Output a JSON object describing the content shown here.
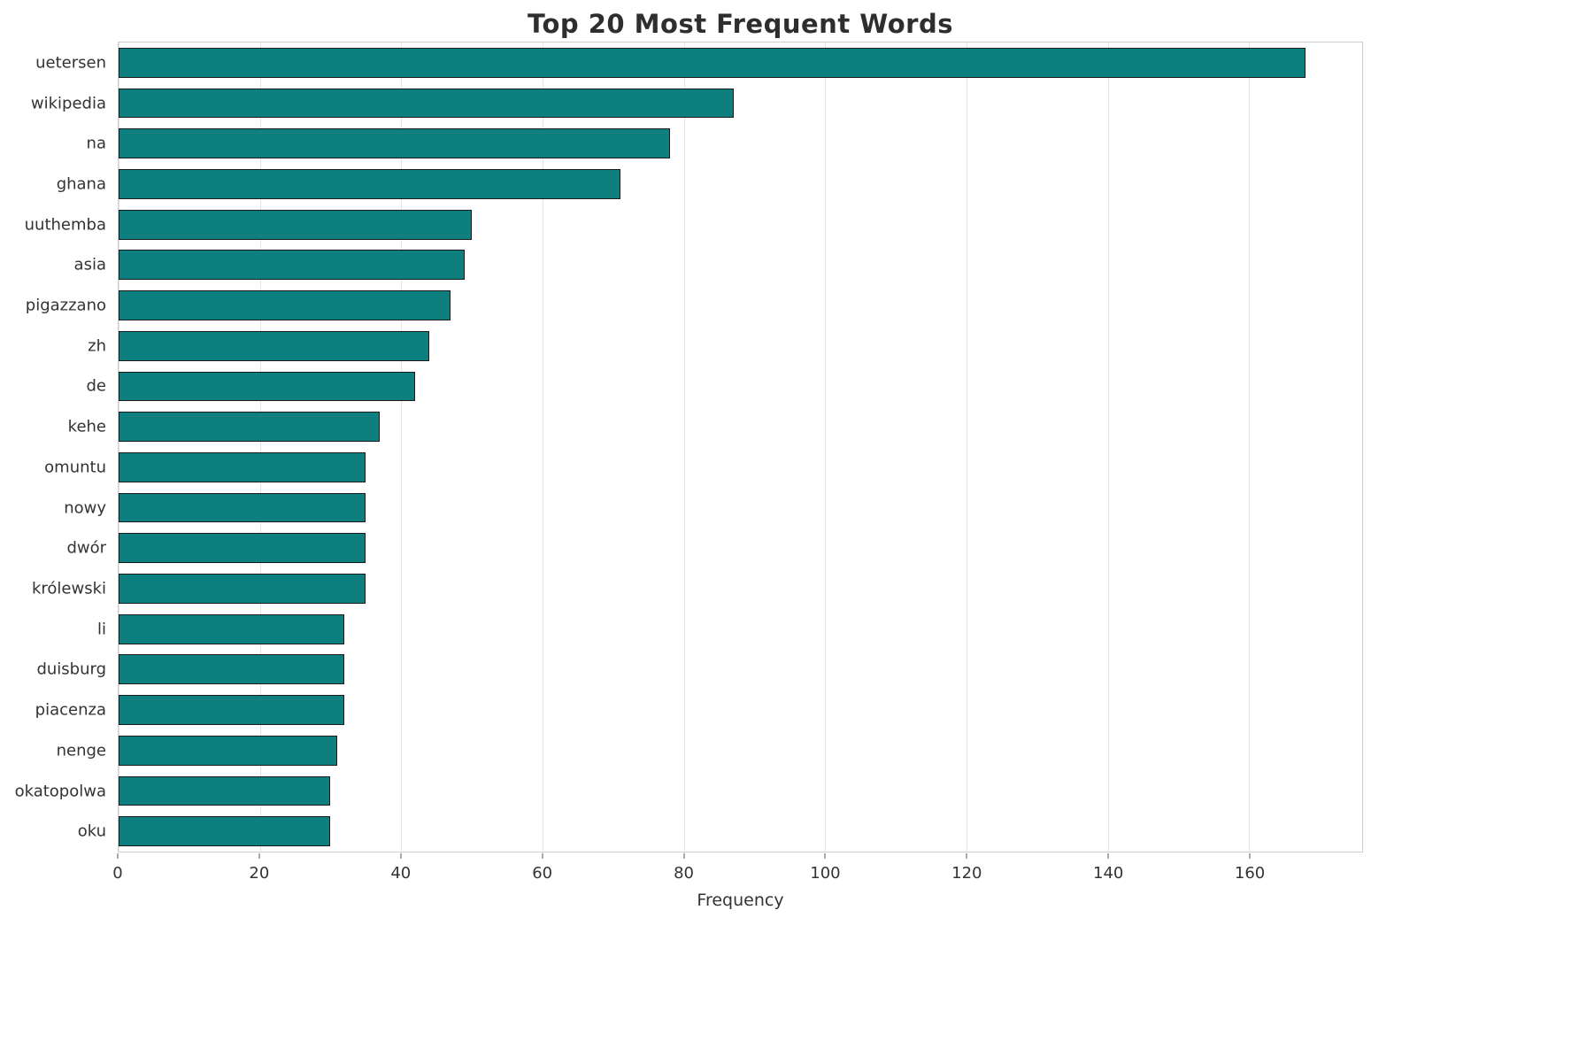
{
  "chart_data": {
    "type": "bar",
    "orientation": "horizontal",
    "title": "Top 20 Most Frequent Words",
    "xlabel": "Frequency",
    "ylabel": "",
    "xlim": [
      0,
      176
    ],
    "xticks": [
      0,
      20,
      40,
      60,
      80,
      100,
      120,
      140,
      160
    ],
    "grid": "vertical",
    "legend": "none",
    "bar_color": "#0e7f7f",
    "bar_edge_color": "#1a1a1a",
    "categories": [
      "uetersen",
      "wikipedia",
      "na",
      "ghana",
      "uuthemba",
      "asia",
      "pigazzano",
      "zh",
      "de",
      "kehe",
      "omuntu",
      "nowy",
      "dwór",
      "królewski",
      "li",
      "duisburg",
      "piacenza",
      "nenge",
      "okatopolwa",
      "oku"
    ],
    "values": [
      168,
      87,
      78,
      71,
      50,
      49,
      47,
      44,
      42,
      37,
      35,
      35,
      35,
      35,
      32,
      32,
      32,
      31,
      30,
      30
    ]
  }
}
